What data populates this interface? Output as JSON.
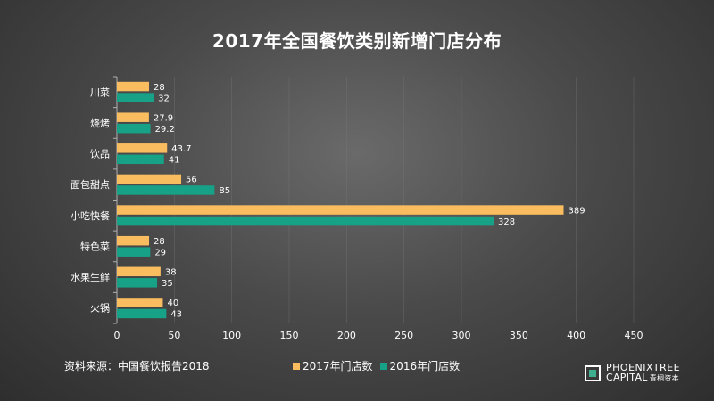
{
  "chart_data": {
    "type": "bar",
    "orientation": "horizontal",
    "title": "2017年全国餐饮类别新增门店分布",
    "categories": [
      "川菜",
      "烧烤",
      "饮品",
      "面包甜点",
      "小吃快餐",
      "特色菜",
      "水果生鲜",
      "火锅"
    ],
    "series": [
      {
        "name": "2017年门店数",
        "color": "#f9bc5f",
        "values": [
          28,
          27.9,
          43.7,
          56,
          389,
          28,
          38,
          40
        ],
        "labels": [
          "28",
          "27.9",
          "43.7",
          "56",
          "389",
          "28",
          "38",
          "40"
        ]
      },
      {
        "name": "2016年门店数",
        "color": "#17a186",
        "values": [
          32,
          29.2,
          41,
          85,
          328,
          29,
          35,
          43
        ],
        "labels": [
          "32",
          "29.2",
          "41",
          "85",
          "328",
          "29",
          "35",
          "43"
        ]
      }
    ],
    "xlim": [
      0,
      450
    ],
    "xticks": [
      0,
      50,
      100,
      150,
      200,
      250,
      300,
      350,
      400,
      450
    ],
    "xtick_labels": [
      "0",
      "50",
      "100",
      "150",
      "200",
      "250",
      "300",
      "350",
      "400",
      "450"
    ],
    "grid": true,
    "legend_position": "bottom"
  },
  "source": "资料来源：中国餐饮报告2018",
  "brand": {
    "line1": "PHOENIXTREE",
    "line2": "CAPITAL",
    "line2_cn": "青桐资本",
    "accent_color": "#3fae8f"
  }
}
